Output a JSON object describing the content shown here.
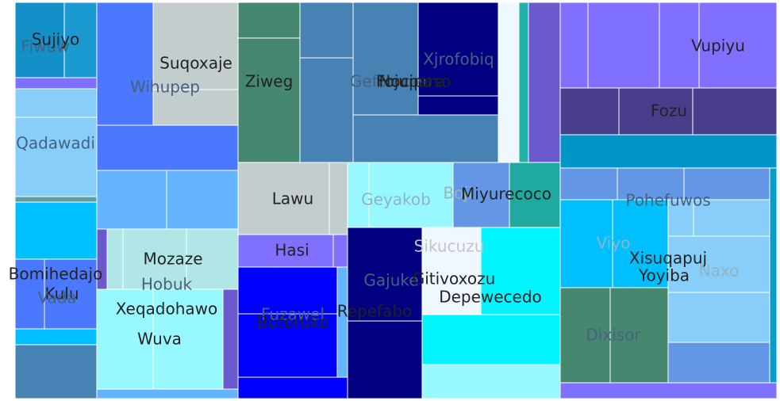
{
  "chart_data": {
    "type": "treemap",
    "title": "",
    "legend": "none",
    "labels": [
      {
        "text": "Fiwuw",
        "color": "#46627e"
      },
      {
        "text": "Sujiyo",
        "color": "#222222"
      },
      {
        "text": "Wihupep",
        "color": "#46627e"
      },
      {
        "text": "Suqoxaje",
        "color": "#222222"
      },
      {
        "text": "Ziweg",
        "color": "#222222"
      },
      {
        "text": "Gefomonu",
        "color": "#46627e"
      },
      {
        "text": "Nocipaso",
        "color": "#222222"
      },
      {
        "text": "Fojupare",
        "color": "#222222"
      },
      {
        "text": "Xjrofobiq",
        "color": "#46627e"
      },
      {
        "text": "Vupiyu",
        "color": "#222222"
      },
      {
        "text": "Fozu",
        "color": "#222222"
      },
      {
        "text": "Qadawadi",
        "color": "#46627e"
      },
      {
        "text": "Lawu",
        "color": "#222222"
      },
      {
        "text": "Geyakob",
        "color": "#8fb4c4"
      },
      {
        "text": "Boji",
        "color": "#8fb4c4"
      },
      {
        "text": "Miyurecoco",
        "color": "#222222"
      },
      {
        "text": "Pohefuwos",
        "color": "#46627e"
      },
      {
        "text": "Viyo",
        "color": "#8fb4c4"
      },
      {
        "text": "Hasi",
        "color": "#222222"
      },
      {
        "text": "Mozaze",
        "color": "#222222"
      },
      {
        "text": "Hobuk",
        "color": "#46627e"
      },
      {
        "text": "Bomihedajo",
        "color": "#222222"
      },
      {
        "text": "Kulu",
        "color": "#222222"
      },
      {
        "text": "Vada",
        "color": "#46627e"
      },
      {
        "text": "Xeqadohawo",
        "color": "#222222"
      },
      {
        "text": "Wuva",
        "color": "#222222"
      },
      {
        "text": "Fuzawel",
        "color": "#46627e"
      },
      {
        "text": "Buferuke",
        "color": "#222222"
      },
      {
        "text": "Repefabo",
        "color": "#222222"
      },
      {
        "text": "Gajuke",
        "color": "#46627e"
      },
      {
        "text": "Sikucuzu",
        "color": "#c4c4c4"
      },
      {
        "text": "Gitivoxozu",
        "color": "#222222"
      },
      {
        "text": "Depewecedo",
        "color": "#222222"
      },
      {
        "text": "Xisuqapuj",
        "color": "#222222"
      },
      {
        "text": "Yoyiba",
        "color": "#222222"
      },
      {
        "text": "Naxo",
        "color": "#8fb4c4"
      },
      {
        "text": "Dixisor",
        "color": "#46627e"
      }
    ]
  }
}
